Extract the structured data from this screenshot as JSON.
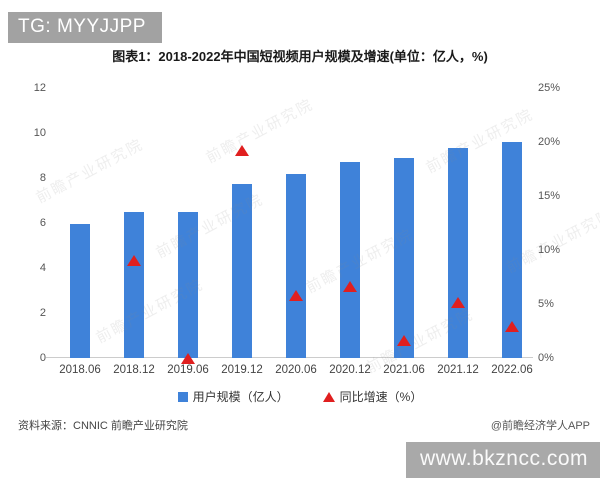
{
  "page": {
    "header_badge": "TG: MYYJJPP",
    "url_badge": "www.bkzncc.com",
    "watermark": "前瞻产业研究院"
  },
  "title": "图表1：2018-2022年中国短视频用户规模及增速(单位：亿人，%)",
  "legend": [
    {
      "label": "用户规模（亿人）",
      "marker": "square",
      "color": "#3f82d9"
    },
    {
      "label": "同比增速（%）",
      "marker": "triangle",
      "color": "#e01f1f"
    }
  ],
  "footer": {
    "source": "资料来源：CNNIC 前瞻产业研究院",
    "credit": "@前瞻经济学人APP"
  },
  "chart_data": {
    "type": "bar",
    "title": "图表1：2018-2022年中国短视频用户规模及增速(单位：亿人，%)",
    "categories": [
      "2018.06",
      "2018.12",
      "2019.06",
      "2019.12",
      "2020.06",
      "2020.12",
      "2021.06",
      "2021.12",
      "2022.06"
    ],
    "series": [
      {
        "name": "用户规模（亿人）",
        "type": "bar",
        "axis": "left",
        "color": "#3f82d9",
        "values": [
          5.94,
          6.48,
          6.48,
          7.73,
          8.18,
          8.73,
          8.88,
          9.34,
          9.62
        ]
      },
      {
        "name": "同比增速（%）",
        "type": "scatter",
        "marker": "triangle",
        "axis": "right",
        "color": "#e01f1f",
        "values": [
          null,
          9.1,
          0.0,
          19.3,
          5.8,
          6.7,
          1.7,
          5.2,
          3.0
        ]
      }
    ],
    "left_axis": {
      "min": 0,
      "max": 12,
      "tick_values": [
        0,
        2,
        4,
        6,
        8,
        10,
        12
      ]
    },
    "right_axis": {
      "min": 0,
      "max": 25,
      "tick_labels": [
        "0%",
        "5%",
        "10%",
        "15%",
        "20%",
        "25%"
      ]
    },
    "grid": false,
    "legend_position": "bottom"
  }
}
